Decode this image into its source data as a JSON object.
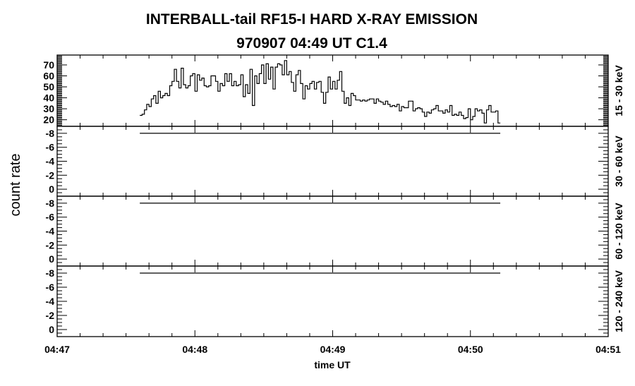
{
  "chart_data": {
    "type": "line",
    "step": true,
    "title_line1": "INTERBALL-tail  RF15-I  HARD  X-RAY  EMISSION",
    "title_line2": "970907     04:49 UT     C1.4",
    "ylabel": "count rate",
    "xlabel": "time UT",
    "x_ticks": [
      "04:47",
      "04:48",
      "04:49",
      "04:50",
      "04:51"
    ],
    "xlim_minutes_after_0447": [
      0,
      4
    ],
    "data_start_minutes_after_0447": 0.6,
    "bin_seconds": 1,
    "colors": {
      "line": "#000000",
      "background": "#ffffff"
    },
    "panels": [
      {
        "label": "15 - 30 keV",
        "ylim": [
          14,
          79
        ],
        "y_ticks": [
          "20",
          "30",
          "40",
          "50",
          "60",
          "70"
        ],
        "y_tick_values": [
          20,
          30,
          40,
          50,
          60,
          70
        ],
        "values": [
          24,
          25,
          29,
          34,
          32,
          39,
          42,
          35,
          46,
          40,
          42,
          44,
          42,
          51,
          55,
          66,
          55,
          49,
          67,
          52,
          49,
          51,
          60,
          62,
          46,
          61,
          56,
          58,
          51,
          50,
          51,
          60,
          60,
          55,
          46,
          53,
          51,
          62,
          55,
          62,
          51,
          55,
          51,
          52,
          61,
          41,
          52,
          44,
          66,
          33,
          60,
          53,
          62,
          70,
          53,
          71,
          57,
          68,
          48,
          68,
          71,
          70,
          61,
          74,
          61,
          64,
          54,
          46,
          61,
          65,
          53,
          39,
          51,
          48,
          53,
          55,
          48,
          54,
          55,
          45,
          35,
          45,
          59,
          48,
          55,
          48,
          56,
          64,
          46,
          35,
          40,
          33,
          44,
          42,
          38,
          38,
          37,
          38,
          37,
          38,
          39,
          39,
          35,
          39,
          37,
          36,
          34,
          37,
          34,
          32,
          33,
          32,
          34,
          28,
          32,
          31,
          31,
          37,
          37,
          28,
          30,
          31,
          30,
          27,
          23,
          27,
          26,
          29,
          30,
          33,
          28,
          28,
          26,
          29,
          27,
          33,
          24,
          25,
          24,
          27,
          24,
          21,
          22,
          30,
          20,
          23,
          30,
          28,
          29,
          26,
          17,
          29,
          33,
          27,
          27,
          28,
          17
        ]
      },
      {
        "label": "30 - 60 keV",
        "ylim": [
          1,
          -9
        ],
        "y_ticks": [
          "-8",
          "-6",
          "-4",
          "-2",
          "0"
        ],
        "y_tick_values": [
          -8,
          -6,
          -4,
          -2,
          0
        ],
        "constant_value": -8
      },
      {
        "label": "60 - 120 keV",
        "ylim": [
          1,
          -9
        ],
        "y_ticks": [
          "-8",
          "-6",
          "-4",
          "-2",
          "0"
        ],
        "y_tick_values": [
          -8,
          -6,
          -4,
          -2,
          0
        ],
        "constant_value": -8
      },
      {
        "label": "120 - 240 keV",
        "ylim": [
          1,
          -9
        ],
        "y_ticks": [
          "-8",
          "-6",
          "-4",
          "-2",
          "0"
        ],
        "y_tick_values": [
          -8,
          -6,
          -4,
          -2,
          0
        ],
        "constant_value": -8
      }
    ]
  }
}
